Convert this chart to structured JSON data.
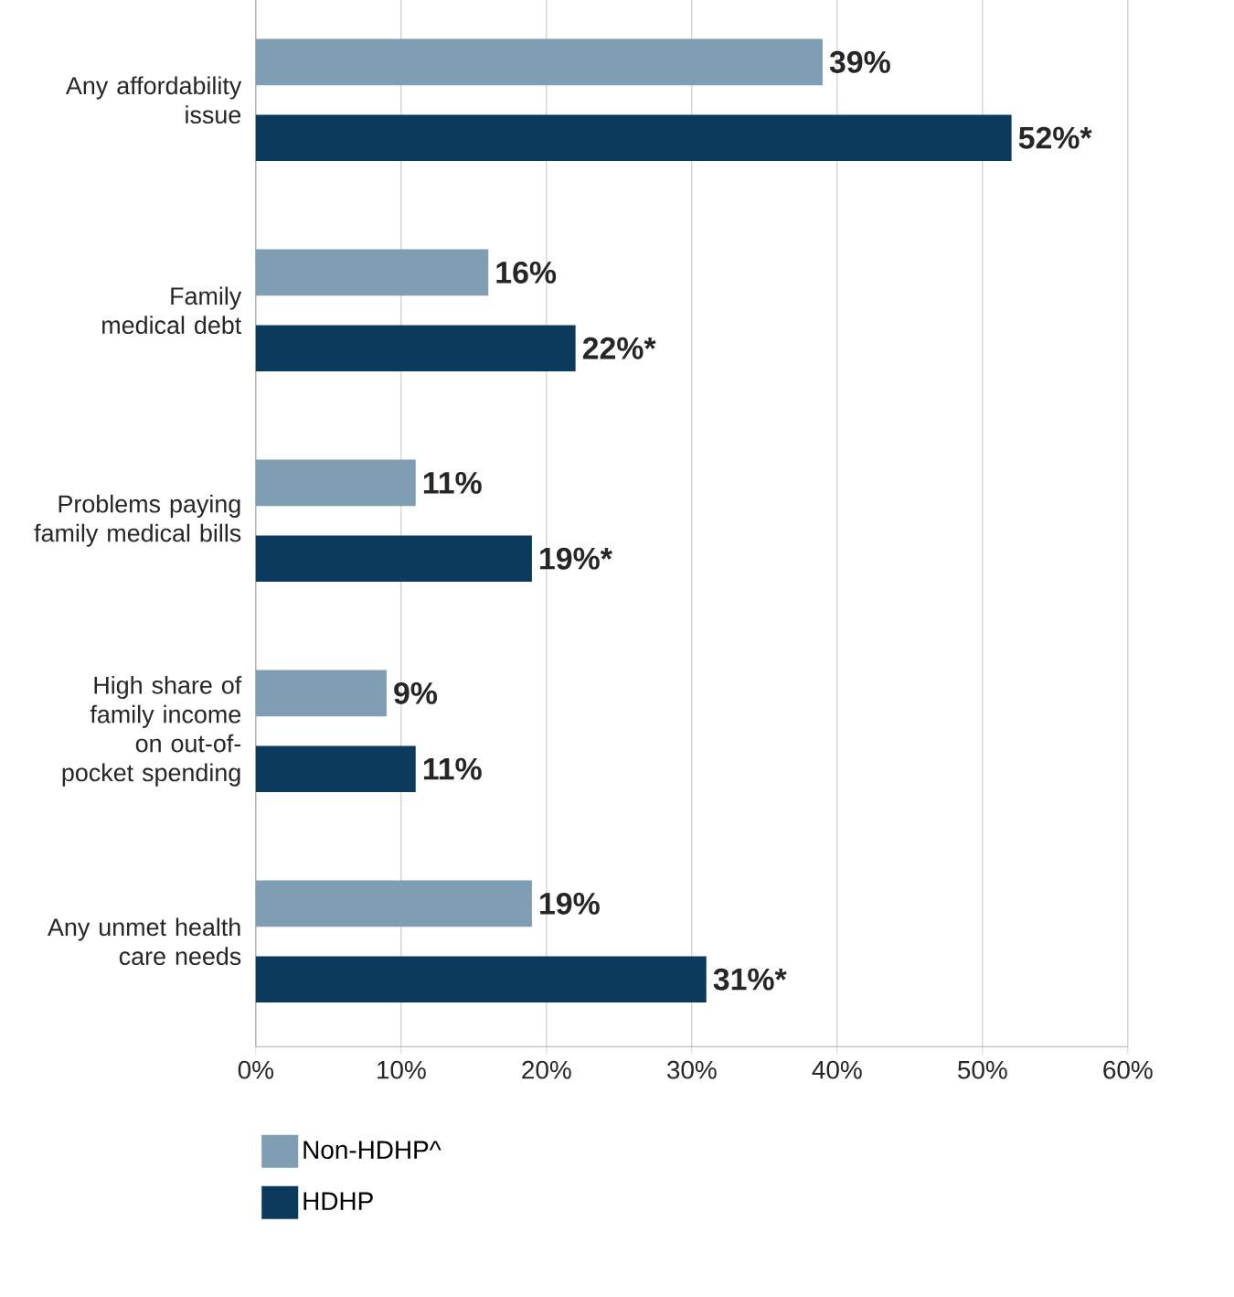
{
  "chart_data": {
    "type": "bar",
    "orientation": "horizontal",
    "categories": [
      "Any affordability issue",
      "Family medical debt",
      "Problems paying family medical bills",
      "High share of family income on out-of-pocket spending",
      "Any unmet health care needs"
    ],
    "series": [
      {
        "name": "Non-HDHP^",
        "color": "#7f9db3",
        "values": [
          39,
          16,
          11,
          9,
          19
        ],
        "value_labels": [
          "39%",
          "16%",
          "11%",
          "9%",
          "19%"
        ]
      },
      {
        "name": "HDHP",
        "color": "#0b3a5c",
        "values": [
          52,
          22,
          19,
          11,
          31
        ],
        "value_labels": [
          "52%*",
          "22%*",
          "19%*",
          "11%",
          "31%*"
        ]
      }
    ],
    "xlim": [
      0,
      60
    ],
    "xticks": [
      {
        "value": 0,
        "label": "0%"
      },
      {
        "value": 10,
        "label": "10%"
      },
      {
        "value": 20,
        "label": "20%"
      },
      {
        "value": 30,
        "label": "30%"
      },
      {
        "value": 40,
        "label": "40%"
      },
      {
        "value": 50,
        "label": "50%"
      },
      {
        "value": 60,
        "label": "60%"
      }
    ],
    "grid": "x",
    "legend": "bottom left"
  }
}
